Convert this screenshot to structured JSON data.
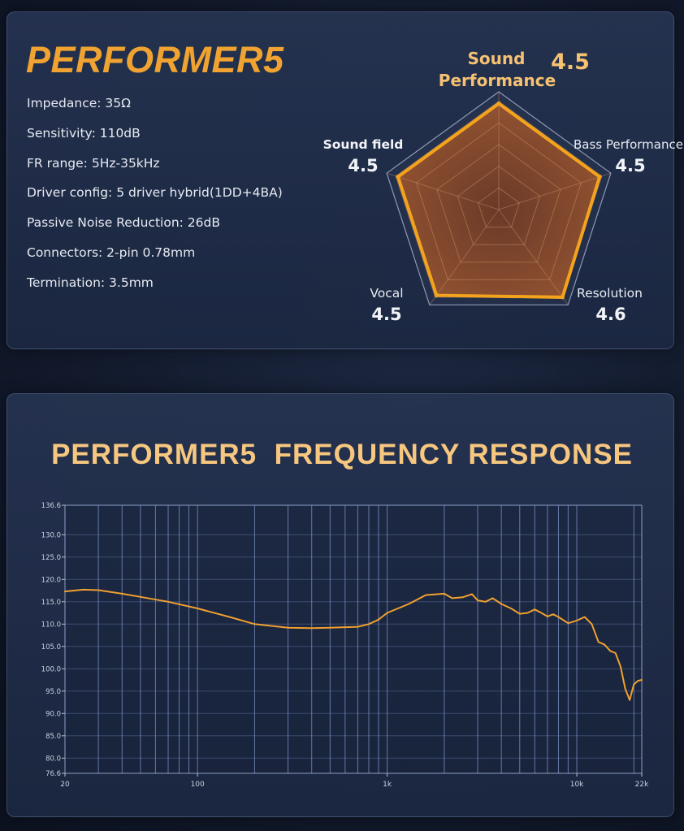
{
  "product": {
    "name": "PERFORMER5",
    "specs": [
      "Impedance: 35Ω",
      "Sensitivity: 110dB",
      "FR range: 5Hz-35kHz",
      "Driver config: 5 driver hybrid(1DD+4BA)",
      "Passive Noise Reduction: 26dB",
      "Connectors: 2-pin 0.78mm",
      "Termination: 3.5mm"
    ]
  },
  "colors": {
    "accent": "#f0a330",
    "title": "#f7c77f",
    "curve": "#f0a030",
    "radar_fill": "#9a5630",
    "grid": "#7f95c9"
  },
  "chart_data": [
    {
      "type": "radar",
      "title": "",
      "max": 5,
      "axes": [
        {
          "label": "Sound Performance",
          "value": 4.5
        },
        {
          "label": "Bass Performance",
          "value": 4.5
        },
        {
          "label": "Resolution",
          "value": 4.6
        },
        {
          "label": "Vocal",
          "value": 4.5
        },
        {
          "label": "Sound field",
          "value": 4.5
        }
      ]
    },
    {
      "type": "line",
      "title": "PERFORMER5  FREQUENCY RESPONSE",
      "x_scale": "log",
      "xlim": [
        20,
        22000
      ],
      "ylim": [
        76.6,
        136.6
      ],
      "xticks": [
        {
          "value": 20,
          "label": "20"
        },
        {
          "value": 100,
          "label": "100"
        },
        {
          "value": 1000,
          "label": "1k"
        },
        {
          "value": 10000,
          "label": "10k"
        },
        {
          "value": 22000,
          "label": "22k"
        }
      ],
      "yticks": [
        "76.6",
        "80.0",
        "85.0",
        "90.0",
        "95.0",
        "100.0",
        "105.0",
        "110.0",
        "115.0",
        "120.0",
        "125.0",
        "130.0",
        "136.6"
      ],
      "grid": true,
      "x": [
        20,
        25,
        30,
        40,
        50,
        70,
        100,
        150,
        200,
        300,
        400,
        500,
        600,
        700,
        800,
        900,
        1000,
        1300,
        1600,
        2000,
        2200,
        2500,
        2800,
        3000,
        3300,
        3600,
        4000,
        4500,
        5000,
        5500,
        6000,
        6500,
        7000,
        7500,
        8000,
        9000,
        10000,
        11000,
        12000,
        13000,
        14000,
        15000,
        16000,
        17000,
        18000,
        19000,
        20000,
        21000,
        22000
      ],
      "y": [
        117.3,
        117.7,
        117.6,
        116.8,
        116.1,
        115.0,
        113.5,
        111.5,
        110.0,
        109.2,
        109.1,
        109.2,
        109.3,
        109.4,
        110.0,
        111.0,
        112.5,
        114.5,
        116.5,
        116.8,
        115.8,
        116.0,
        116.7,
        115.3,
        115.0,
        115.8,
        114.5,
        113.5,
        112.3,
        112.5,
        113.3,
        112.5,
        111.7,
        112.2,
        111.6,
        110.2,
        110.8,
        111.6,
        110.0,
        106.0,
        105.4,
        104.0,
        103.5,
        100.5,
        95.5,
        93.0,
        96.5,
        97.3,
        97.5
      ]
    }
  ]
}
